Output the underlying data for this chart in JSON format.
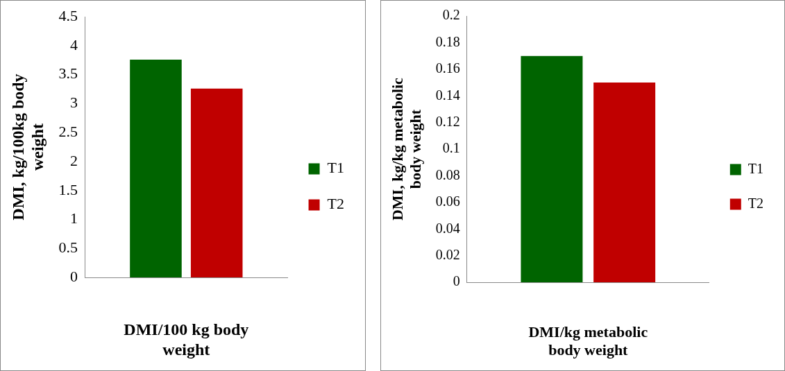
{
  "chart_data": [
    {
      "type": "bar",
      "categories": [
        null
      ],
      "xlabel": "DMI/100 kg body weight",
      "ylabel": "DMI, kg/100kg body weight",
      "series": [
        {
          "name": "T1",
          "color": "#006400",
          "values": [
            3.76
          ]
        },
        {
          "name": "T2",
          "color": "#c00000",
          "values": [
            3.26
          ]
        }
      ],
      "ylim": [
        0,
        4.5
      ],
      "yticks": [
        0,
        0.5,
        1,
        1.5,
        2,
        2.5,
        3,
        3.5,
        4,
        4.5
      ],
      "grid": false,
      "legend": "right"
    },
    {
      "type": "bar",
      "categories": [
        null
      ],
      "xlabel": "DMI/kg metabolic body weight",
      "ylabel": "DMI, kg/kg metabolic body weight",
      "series": [
        {
          "name": "T1",
          "color": "#006400",
          "values": [
            0.17
          ]
        },
        {
          "name": "T2",
          "color": "#c00000",
          "values": [
            0.15
          ]
        }
      ],
      "ylim": [
        0,
        0.2
      ],
      "yticks": [
        0,
        0.02,
        0.04,
        0.06,
        0.08,
        0.1,
        0.12,
        0.14,
        0.16,
        0.18,
        0.2
      ],
      "grid": false,
      "legend": "right"
    }
  ]
}
